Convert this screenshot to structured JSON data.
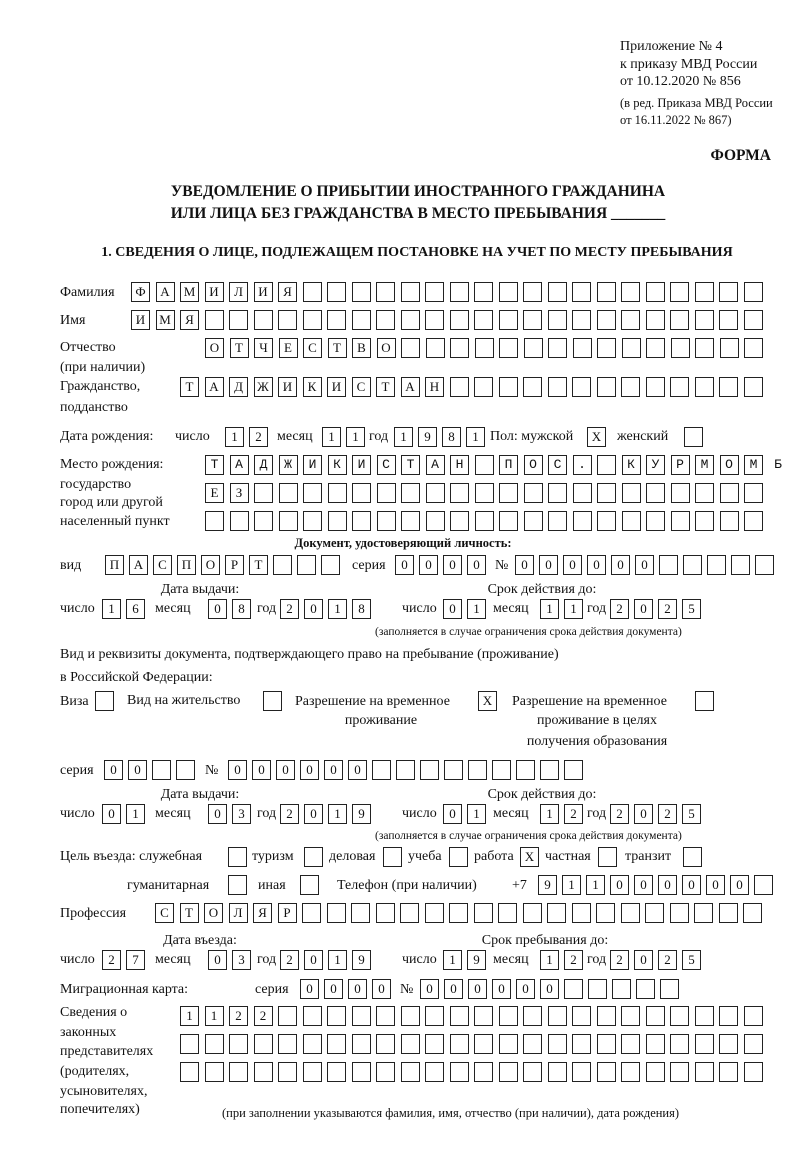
{
  "header": {
    "appendix": [
      "Приложение № 4",
      "к приказу МВД России",
      "от 10.12.2020 № 856"
    ],
    "edition": [
      "(в ред. Приказа МВД России",
      "от 16.11.2022 № 867)"
    ],
    "form_label": "ФОРМА"
  },
  "title": [
    "УВЕДОМЛЕНИЕ О ПРИБЫТИИ ИНОСТРАННОГО ГРАЖДАНИНА",
    "ИЛИ ЛИЦА БЕЗ ГРАЖДАНСТВА В МЕСТО ПРЕБЫВАНИЯ _______"
  ],
  "section1_title": "1. СВЕДЕНИЯ О ЛИЦЕ, ПОДЛЕЖАЩЕМ ПОСТАНОВКЕ НА УЧЕТ ПО МЕСТУ ПРЕБЫВАНИЯ",
  "person": {
    "surname_label": "Фамилия",
    "surname": "ФАМИЛИЯ",
    "name_label": "Имя",
    "name": "ИМЯ",
    "patronymic_label": [
      "Отчество",
      "(при наличии)"
    ],
    "patronymic": "ОТЧЕСТВО",
    "citizenship_label": [
      "Гражданство,",
      "подданство"
    ],
    "citizenship": "ТАДЖИКИСТАН"
  },
  "birth": {
    "label": "Дата рождения:",
    "day_label": "число",
    "day": "12",
    "month_label": "месяц",
    "month": "11",
    "year_label": "год",
    "year": "1981",
    "sex_label": "Пол: мужской",
    "male": "X",
    "female_label": "женский",
    "female": ""
  },
  "birthplace": {
    "label_lines": [
      "Место рождения:",
      "государство",
      "город или другой",
      "населенный пункт"
    ],
    "rows": [
      "ТАДЖИКИСТАН ПОС. КУРМОМБ",
      "ЕЗ",
      ""
    ]
  },
  "id_document": {
    "heading": "Документ, удостоверяющий личность:",
    "type_label": "вид",
    "type": "ПАСПОРТ",
    "series_label": "серия",
    "series": "0000",
    "number_label": "№",
    "number": "000000",
    "issue_label": "Дата выдачи:",
    "validity_label": "Срок действия до:",
    "day_label": "число",
    "month_label": "месяц",
    "year_label": "год",
    "issue_day": "16",
    "issue_month": "08",
    "issue_year": "2018",
    "valid_day": "01",
    "valid_month": "11",
    "valid_year": "2025",
    "note": "(заполняется в случае ограничения срока действия документа)"
  },
  "residence_document": {
    "heading": [
      "Вид и реквизиты документа, подтверждающего право на пребывание (проживание)",
      "в Российской Федерации:"
    ],
    "visa_label": "Виза",
    "visa": "",
    "residence_permit_label": "Вид на жительство",
    "residence_permit": "",
    "temp_permit_label": [
      "Разрешение на временное",
      "проживание"
    ],
    "temp_permit": "X",
    "temp_permit_edu_label": [
      "Разрешение на временное",
      "проживание в целях",
      "получения образования"
    ],
    "temp_permit_edu": "",
    "series_label": "серия",
    "series": "00",
    "number_label": "№",
    "number": "000000",
    "issue_label": "Дата выдачи:",
    "validity_label": "Срок действия до:",
    "day_label": "число",
    "month_label": "месяц",
    "year_label": "год",
    "issue_day": "01",
    "issue_month": "03",
    "issue_year": "2019",
    "valid_day": "01",
    "valid_month": "12",
    "valid_year": "2025",
    "note": "(заполняется в случае ограничения срока действия документа)"
  },
  "purpose": {
    "label": "Цель въезда: служебная",
    "official": "",
    "tourism_label": "туризм",
    "tourism": "",
    "business_label": "деловая",
    "business": "",
    "study_label": "учеба",
    "study": "",
    "work_label": "работа",
    "work": "X",
    "private_label": "частная",
    "private": "",
    "transit_label": "транзит",
    "transit": "",
    "humanitarian_label": "гуманитарная",
    "humanitarian": "",
    "other_label": "иная",
    "other": ""
  },
  "phone": {
    "label": "Телефон (при наличии)",
    "prefix": "+7",
    "value": "911000000"
  },
  "profession": {
    "label": "Профессия",
    "value": "СТОЛЯР"
  },
  "entry": {
    "entry_label": "Дата въезда:",
    "stay_label": "Срок пребывания до:",
    "day_label": "число",
    "month_label": "месяц",
    "year_label": "год",
    "entry_day": "27",
    "entry_month": "03",
    "entry_year": "2019",
    "stay_day": "19",
    "stay_month": "12",
    "stay_year": "2025"
  },
  "migration_card": {
    "label": "Миграционная карта:",
    "series_label": "серия",
    "series": "0000",
    "number_label": "№",
    "number": "000000"
  },
  "representatives": {
    "label_lines": [
      "Сведения о",
      "законных",
      "представителях",
      "(родителях,",
      "усыновителях,",
      "попечителях)"
    ],
    "rows": [
      "1122",
      "",
      ""
    ],
    "note": "(при заполнении указываются фамилия, имя, отчество (при наличии), дата рождения)"
  }
}
